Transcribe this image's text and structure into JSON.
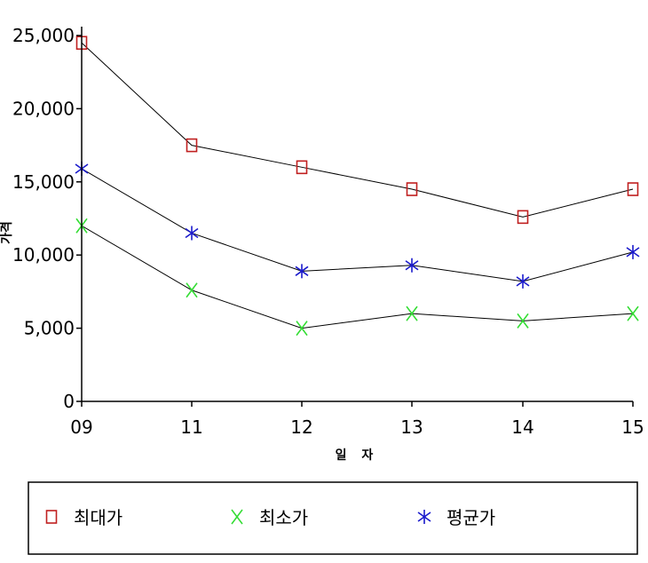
{
  "chart_data": {
    "type": "line",
    "title": "",
    "xlabel": "일 자",
    "ylabel": "가격",
    "categories": [
      "09",
      "11",
      "12",
      "13",
      "14",
      "15"
    ],
    "ylim": [
      0,
      25000
    ],
    "yticks": [
      "0",
      "5,000",
      "10,000",
      "15,000",
      "20,000",
      "25,000"
    ],
    "ytick_values": [
      0,
      5000,
      10000,
      15000,
      20000,
      25000
    ],
    "grid": false,
    "legend_position": "bottom",
    "series": [
      {
        "name": "최대가",
        "values": [
          24500,
          17500,
          16000,
          14500,
          12600,
          14500
        ],
        "color": "#c02020",
        "marker": "square"
      },
      {
        "name": "최소가",
        "values": [
          12000,
          7600,
          5000,
          6000,
          5500,
          6000
        ],
        "color": "#33dd33",
        "marker": "x"
      },
      {
        "name": "평균가",
        "values": [
          15900,
          11500,
          8900,
          9300,
          8200,
          10200
        ],
        "color": "#1a1acc",
        "marker": "star"
      }
    ],
    "line_color": "#000000"
  }
}
